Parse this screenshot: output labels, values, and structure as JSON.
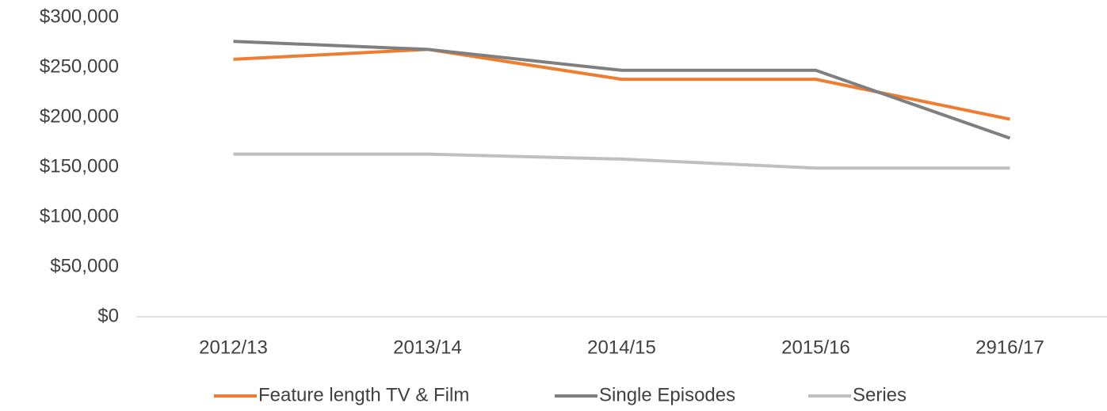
{
  "chart_data": {
    "type": "line",
    "categories": [
      "2012/13",
      "2013/14",
      "2014/15",
      "2015/16",
      "2916/17"
    ],
    "series": [
      {
        "name": "Feature length TV & Film",
        "color": "#ed7d31",
        "values": [
          258000,
          268000,
          238000,
          238000,
          198000
        ]
      },
      {
        "name": "Single Episodes",
        "color": "#7f7f7f",
        "values": [
          276000,
          268000,
          247000,
          247000,
          179000
        ]
      },
      {
        "name": "Series",
        "color": "#bfbfbf",
        "values": [
          163000,
          163000,
          158000,
          149000,
          149000
        ]
      }
    ],
    "ylim": [
      0,
      300000
    ],
    "yticks": [
      {
        "value": 0,
        "label": "$0"
      },
      {
        "value": 50000,
        "label": "$50,000"
      },
      {
        "value": 100000,
        "label": "$100,000"
      },
      {
        "value": 150000,
        "label": "$150,000"
      },
      {
        "value": 200000,
        "label": "$200,000"
      },
      {
        "value": 250000,
        "label": "$250,000"
      },
      {
        "value": 300000,
        "label": "$300,000"
      }
    ],
    "legend": "bottom"
  }
}
